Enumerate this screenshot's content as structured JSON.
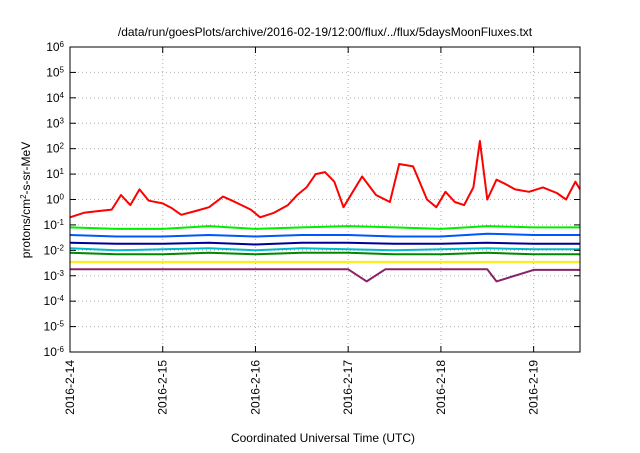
{
  "chart_data": {
    "type": "line",
    "title": "/data/run/goesPlots/archive/2016-02-19/12:00/flux/../flux/5daysMoonFluxes.txt",
    "xlabel": "Coordinated Universal Time (UTC)",
    "ylabel": {
      "pre": "protons/cm",
      "sup": "2",
      "post": "-s-sr-MeV"
    },
    "yscale": "log",
    "ylim_exp": [
      -6,
      6
    ],
    "y_ticks": [
      {
        "base": "10",
        "exp": "-6"
      },
      {
        "base": "10",
        "exp": "-5"
      },
      {
        "base": "10",
        "exp": "-4"
      },
      {
        "base": "10",
        "exp": "-3"
      },
      {
        "base": "10",
        "exp": "-2"
      },
      {
        "base": "10",
        "exp": "-1"
      },
      {
        "base": "10",
        "exp": "0"
      },
      {
        "base": "10",
        "exp": "1"
      },
      {
        "base": "10",
        "exp": "2"
      },
      {
        "base": "10",
        "exp": "3"
      },
      {
        "base": "10",
        "exp": "4"
      },
      {
        "base": "10",
        "exp": "5"
      },
      {
        "base": "10",
        "exp": "6"
      }
    ],
    "x_ticks": [
      "2016-2-14",
      "2016-2-15",
      "2016-2-16",
      "2016-2-17",
      "2016-2-18",
      "2016-2-19"
    ],
    "xlim_days": [
      0,
      5.5
    ],
    "grid": true,
    "series": [
      {
        "color": "#ff0000",
        "x": [
          0.0,
          0.15,
          0.3,
          0.45,
          0.55,
          0.65,
          0.75,
          0.85,
          1.0,
          1.1,
          1.2,
          1.35,
          1.5,
          1.65,
          1.75,
          1.85,
          1.95,
          2.05,
          2.2,
          2.35,
          2.45,
          2.55,
          2.65,
          2.75,
          2.85,
          2.95,
          3.05,
          3.15,
          3.3,
          3.45,
          3.55,
          3.7,
          3.85,
          3.95,
          4.05,
          4.15,
          4.25,
          4.35,
          4.42,
          4.5,
          4.6,
          4.7,
          4.8,
          4.95,
          5.1,
          5.25,
          5.35,
          5.45,
          5.5
        ],
        "y": [
          0.2,
          0.3,
          0.35,
          0.4,
          1.5,
          0.6,
          2.5,
          0.9,
          0.7,
          0.45,
          0.25,
          0.35,
          0.5,
          1.3,
          0.9,
          0.6,
          0.4,
          0.2,
          0.3,
          0.6,
          1.5,
          3.0,
          10,
          12,
          5,
          0.5,
          2.0,
          8.0,
          1.5,
          0.8,
          25,
          20,
          1.0,
          0.5,
          2.0,
          0.8,
          0.6,
          3.0,
          200,
          1.0,
          6,
          4,
          2.5,
          2.0,
          3.0,
          1.8,
          1.0,
          5,
          2.5
        ]
      },
      {
        "color": "#00ee00",
        "x": [
          0,
          0.5,
          1,
          1.5,
          2,
          2.5,
          3,
          3.5,
          4,
          4.5,
          5,
          5.5
        ],
        "y": [
          0.08,
          0.07,
          0.07,
          0.09,
          0.07,
          0.08,
          0.09,
          0.08,
          0.07,
          0.09,
          0.08,
          0.08
        ]
      },
      {
        "color": "#0055ff",
        "x": [
          0,
          0.5,
          1,
          1.5,
          2,
          2.5,
          3,
          3.5,
          4,
          4.5,
          5,
          5.5
        ],
        "y": [
          0.04,
          0.035,
          0.035,
          0.04,
          0.035,
          0.04,
          0.04,
          0.035,
          0.035,
          0.045,
          0.04,
          0.04
        ]
      },
      {
        "color": "#00bbcc",
        "x": [
          0,
          0.5,
          1,
          1.5,
          2,
          2.5,
          3,
          3.5,
          4,
          4.5,
          5,
          5.5
        ],
        "y": [
          0.012,
          0.01,
          0.011,
          0.012,
          0.01,
          0.012,
          0.011,
          0.01,
          0.011,
          0.012,
          0.011,
          0.011
        ]
      },
      {
        "color": "#000099",
        "x": [
          0,
          0.5,
          1,
          1.5,
          2,
          2.5,
          3,
          3.5,
          4,
          4.5,
          5,
          5.5
        ],
        "y": [
          0.02,
          0.018,
          0.018,
          0.02,
          0.017,
          0.02,
          0.02,
          0.018,
          0.018,
          0.02,
          0.018,
          0.018
        ]
      },
      {
        "color": "#008800",
        "x": [
          0,
          0.5,
          1,
          1.5,
          2,
          2.5,
          3,
          3.5,
          4,
          4.5,
          5,
          5.5
        ],
        "y": [
          0.008,
          0.007,
          0.007,
          0.008,
          0.007,
          0.008,
          0.008,
          0.007,
          0.007,
          0.008,
          0.007,
          0.007
        ]
      },
      {
        "color": "#ffee00",
        "x": [
          0,
          0.5,
          1,
          1.5,
          2,
          2.5,
          3,
          3.5,
          4,
          4.5,
          5,
          5.5
        ],
        "y": [
          0.0035,
          0.0035,
          0.0035,
          0.0035,
          0.0035,
          0.0035,
          0.0035,
          0.0035,
          0.0035,
          0.0035,
          0.0035,
          0.0035
        ]
      },
      {
        "color": "#882266",
        "x": [
          0,
          0.5,
          1,
          1.5,
          2,
          2.5,
          3,
          3.2,
          3.4,
          3.5,
          4,
          4.5,
          4.6,
          5,
          5.5
        ],
        "y": [
          0.0018,
          0.0018,
          0.0018,
          0.0018,
          0.0018,
          0.0018,
          0.0018,
          0.0006,
          0.0018,
          0.0018,
          0.0018,
          0.0018,
          0.0006,
          0.0017,
          0.0017
        ]
      }
    ]
  }
}
